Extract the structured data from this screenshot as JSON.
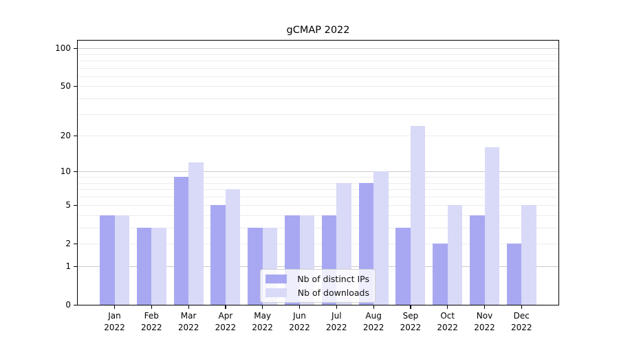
{
  "title": "gCMAP 2022",
  "chart_data": {
    "type": "bar",
    "title": "gCMAP 2022",
    "categories": [
      "Jan",
      "Feb",
      "Mar",
      "Apr",
      "May",
      "Jun",
      "Jul",
      "Aug",
      "Sep",
      "Oct",
      "Nov",
      "Dec"
    ],
    "year_label": "2022",
    "series": [
      {
        "name": "Nb of distinct IPs",
        "color": "#a8a8f2",
        "values": [
          4,
          3,
          9,
          5,
          3,
          4,
          4,
          8,
          3,
          2,
          4,
          2
        ]
      },
      {
        "name": "Nb of downloads",
        "color": "#d9d9f8",
        "values": [
          4,
          3,
          12,
          7,
          3,
          4,
          8,
          10,
          24,
          5,
          16,
          5
        ]
      }
    ],
    "xlabel": "",
    "ylabel": "",
    "y_axis": {
      "scale": "log1p",
      "ymax": 115,
      "tick_values": [
        0,
        1,
        2,
        5,
        10,
        20,
        50,
        100
      ],
      "tick_labels": [
        "0",
        "1",
        "2",
        "5",
        "10",
        "20",
        "50",
        "100"
      ],
      "major_gridlines": [
        1,
        10,
        100
      ],
      "minor_gridlines": [
        2,
        3,
        4,
        5,
        6,
        7,
        8,
        9,
        20,
        30,
        40,
        50,
        60,
        70,
        80,
        90
      ]
    },
    "legend": {
      "position": "lower center",
      "entries": [
        "Nb of distinct IPs",
        "Nb of downloads"
      ]
    },
    "grid": true
  }
}
